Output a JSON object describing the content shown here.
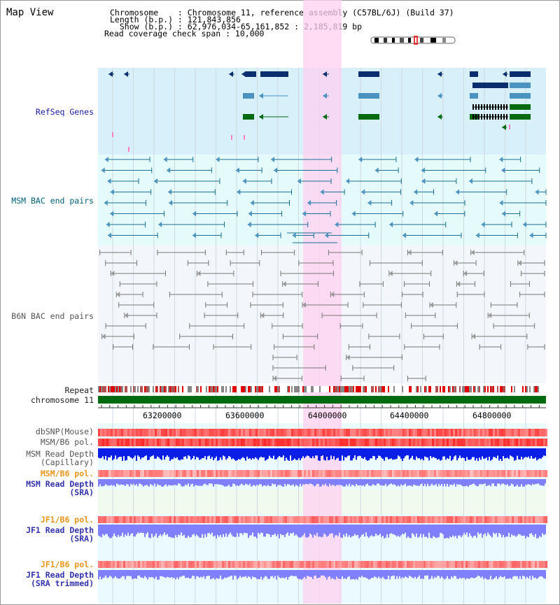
{
  "view": {
    "title": "Map View",
    "info_lines": [
      "Chromosome    : Chromosome 11, reference assembly (C57BL/6J) (Build 37)",
      "Length (b.p.) : 121,843,856",
      "  Show (b.p.) : 62,976,034-65,161,852 : 2,185,819 bp",
      "Read coverage check span : 10,000"
    ]
  },
  "tracks": {
    "refseq": "RefSeq Genes",
    "msm_bac": "MSM BAC end pairs",
    "b6n_bac": "B6N BAC end pairs",
    "repeat": "Repeat",
    "chromosome": "chromosome 11",
    "dbsnp": "dbSNP(Mouse)",
    "msm_b6_pol": "MSM/B6 pol.",
    "msm_depth_cap_1": "MSM Read Depth",
    "msm_depth_cap_2": "(Capillary)",
    "msm_b6_pol2": "MSM/B6 pol.",
    "msm_depth_sra_1": "MSM Read Depth",
    "msm_depth_sra_2": "(SRA)",
    "jf1_pol": "JF1/B6 pol.",
    "jf1_depth_sra_1": "JF1 Read Depth",
    "jf1_depth_sra_2": "(SRA)",
    "jf1_pol2": "JF1/B6 pol.",
    "jf1_trim_1": "JF1 Read Depth",
    "jf1_trim_2": "(SRA trimmed)"
  },
  "axis": {
    "ticks": [
      "63200000",
      "63600000",
      "64000000",
      "64400000",
      "64800000"
    ]
  },
  "colors": {
    "highlight": "#ffd0f0",
    "refseq_bg": "#d7f0fa",
    "msm_bg": "#e5fafa",
    "gene_dark": "#0a2e6e",
    "gene_light": "#4a92c0",
    "gene_green": "#006a10",
    "chromosome": "#006a10",
    "depth_blue": "#0a1ee6",
    "depth_light": "#8080ff"
  }
}
